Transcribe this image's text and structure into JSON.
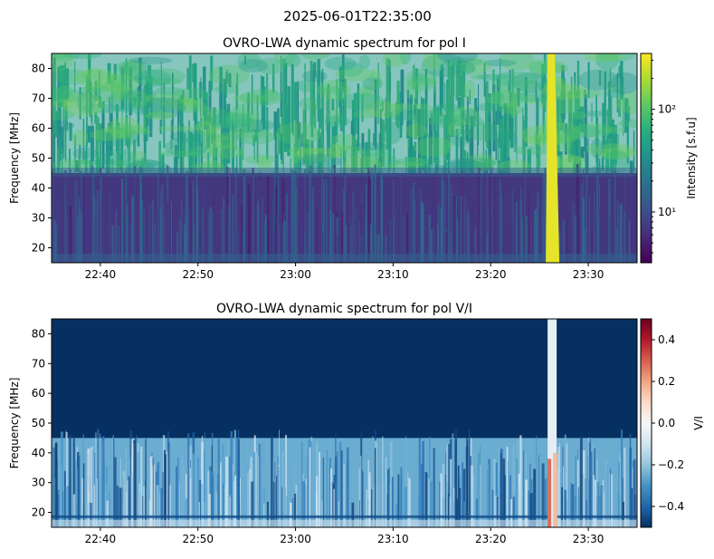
{
  "suptitle": "2025-06-01T22:35:00",
  "chart_data": [
    {
      "type": "heatmap",
      "title": "OVRO-LWA dynamic spectrum for pol I",
      "xlabel": "",
      "ylabel": "Frequency [MHz]",
      "x_ticks": [
        "22:40",
        "22:50",
        "23:00",
        "23:10",
        "23:20",
        "23:30"
      ],
      "x_tick_minutes": [
        5,
        15,
        25,
        35,
        45,
        55
      ],
      "xlim_minutes": [
        0,
        60
      ],
      "y_ticks": [
        20,
        30,
        40,
        50,
        60,
        70,
        80
      ],
      "ylim": [
        15,
        85
      ],
      "colormap": "viridis",
      "colorbar": {
        "label": "Intensity [s.f.u]",
        "scale": "log",
        "range": [
          3.2,
          350
        ],
        "major_ticks": [
          {
            "value": 10,
            "label": "10¹"
          },
          {
            "value": 100,
            "label": "10²"
          }
        ]
      },
      "features": {
        "burst_time_minutes": 51.2,
        "band_split_mhz": 45,
        "intensity_above_45": 40,
        "intensity_below_45": 7,
        "burst_intensity": 300
      }
    },
    {
      "type": "heatmap",
      "title": "OVRO-LWA dynamic spectrum for pol V/I",
      "xlabel": "",
      "ylabel": "Frequency [MHz]",
      "x_ticks": [
        "22:40",
        "22:50",
        "23:00",
        "23:10",
        "23:20",
        "23:30"
      ],
      "x_tick_minutes": [
        5,
        15,
        25,
        35,
        45,
        55
      ],
      "xlim_minutes": [
        0,
        60
      ],
      "y_ticks": [
        20,
        30,
        40,
        50,
        60,
        70,
        80
      ],
      "ylim": [
        15,
        85
      ],
      "colormap": "RdBu_r",
      "colorbar": {
        "label": "V/I",
        "scale": "linear",
        "range": [
          -0.5,
          0.5
        ],
        "major_ticks": [
          {
            "value": 0.4,
            "label": "0.4"
          },
          {
            "value": 0.2,
            "label": "0.2"
          },
          {
            "value": 0.0,
            "label": "0.0"
          },
          {
            "value": -0.2,
            "label": "−0.2"
          },
          {
            "value": -0.4,
            "label": "−0.4"
          }
        ]
      },
      "features": {
        "burst_time_minutes": 51.2,
        "band_split_mhz": 45,
        "value_above_45": -0.5,
        "value_below_45": -0.25,
        "burst_value": 0.3
      }
    }
  ]
}
